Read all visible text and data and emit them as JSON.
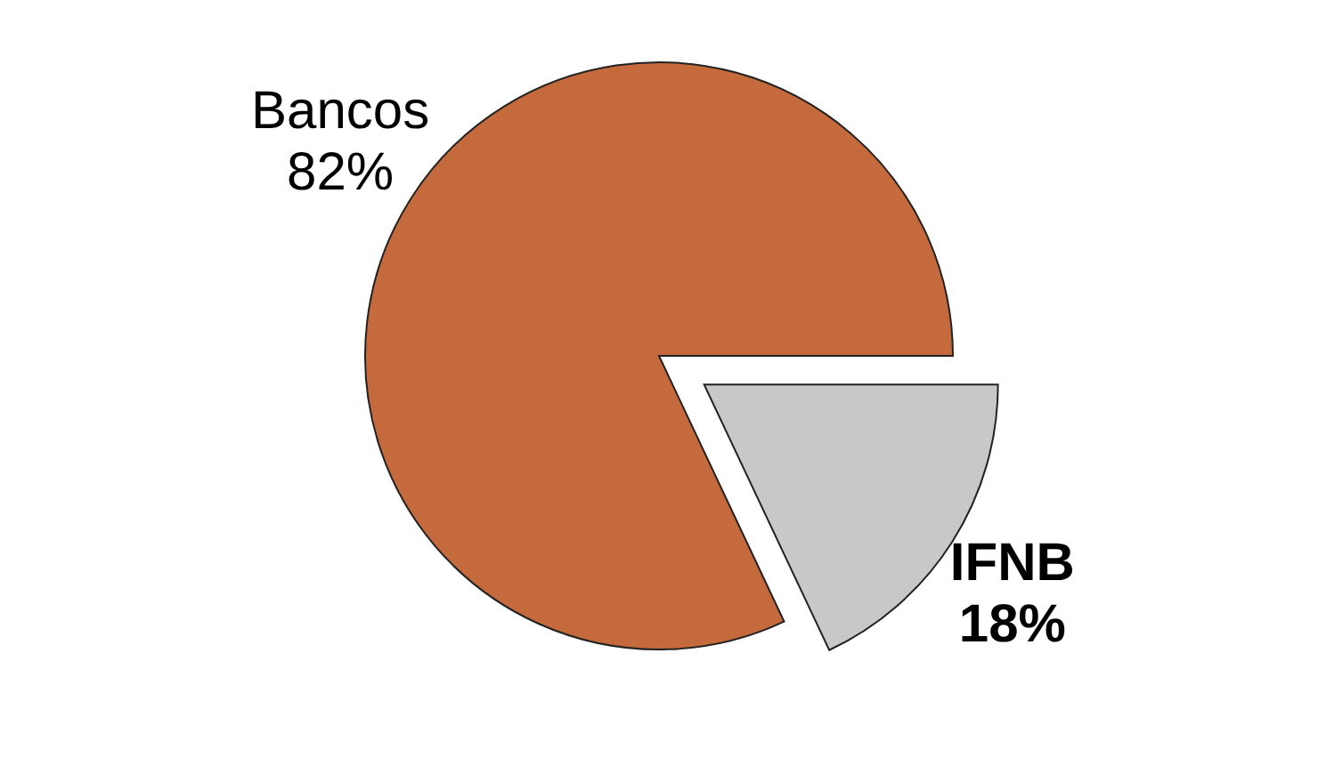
{
  "chart_data": {
    "type": "pie",
    "categories": [
      "Bancos",
      "IFNB"
    ],
    "values": [
      82,
      18
    ],
    "value_labels": [
      "82%",
      "18%"
    ],
    "colors": [
      "#c46a3c",
      "#c8c8c8"
    ]
  }
}
